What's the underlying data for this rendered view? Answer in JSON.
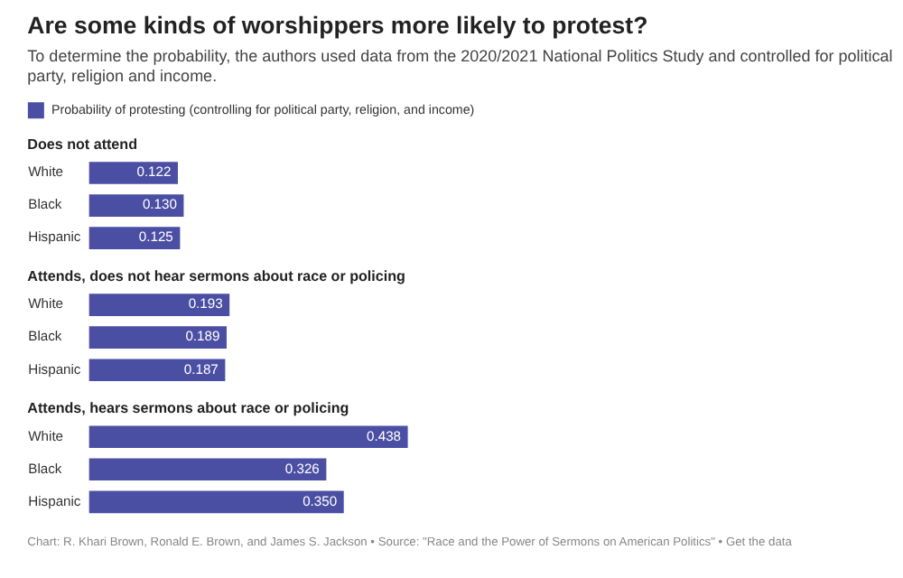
{
  "chart_data": [
    {
      "type": "other",
      "title": "Are some kinds of worshippers more likely to protest?",
      "subtitle": "To determine the probability, the authors used data from the 2020/2021 National Politics Study and controlled for political party, religion and income."
    },
    {
      "type": "bar",
      "orientation": "horizontal",
      "title": "Does not attend",
      "categories": [
        "White",
        "Black",
        "Hispanic"
      ],
      "series": [
        {
          "name": "Probability of protesting (controlling for political party, religion, and income)",
          "color": "#4b4fa3",
          "values": [
            0.122,
            0.13,
            0.125
          ],
          "value_labels": [
            "0.122",
            "0.130",
            "0.125"
          ]
        }
      ],
      "tick_labels": "y",
      "legend": "top"
    },
    {
      "type": "bar",
      "orientation": "horizontal",
      "title": "Attends, does not hear sermons about race or policing",
      "categories": [
        "White",
        "Black",
        "Hispanic"
      ],
      "series": [
        {
          "color": "#4b4fa3",
          "values": [
            0.193,
            0.189,
            0.187
          ],
          "value_labels": [
            "0.193",
            "0.189",
            "0.187"
          ]
        }
      ],
      "tick_labels": "y"
    },
    {
      "type": "bar",
      "orientation": "horizontal",
      "title": "Attends, hears sermons about race or policing",
      "categories": [
        "White",
        "Black",
        "Hispanic"
      ],
      "series": [
        {
          "color": "#4b4fa3",
          "values": [
            0.438,
            0.326,
            0.35
          ],
          "value_labels": [
            "0.438",
            "0.326",
            "0.350"
          ]
        }
      ],
      "tick_labels": "y",
      "annotations": [
        "Chart: R. Khari Brown, Ronald E. Brown, and James S. Jackson • Source: \"Race and the Power of Sermons on American Politics\" • Get the data"
      ]
    }
  ]
}
